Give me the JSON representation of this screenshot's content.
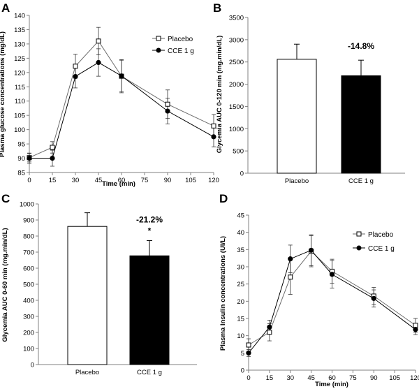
{
  "chart_data": [
    {
      "panel": "A",
      "type": "line",
      "xlabel": "Time (min)",
      "ylabel": "Plasma glucose concentrations (mg/dL)",
      "x": [
        0,
        15,
        30,
        45,
        60,
        90,
        120
      ],
      "xticks": [
        "0",
        "15",
        "30",
        "45",
        "60",
        "75",
        "90",
        "105",
        "120"
      ],
      "xlim": [
        0,
        120
      ],
      "ylim": [
        85,
        140
      ],
      "yticks": [
        "85",
        "90",
        "95",
        "100",
        "105",
        "110",
        "115",
        "120",
        "125",
        "130",
        "135",
        "140"
      ],
      "legend_position": "top-right",
      "series": [
        {
          "name": "Placebo",
          "marker": "open-square",
          "values": [
            90.2,
            93.8,
            122.2,
            131.0,
            118.7,
            108.9,
            101.3
          ],
          "errors": [
            1.5,
            2.0,
            4.2,
            4.8,
            5.8,
            5.0,
            4.0
          ]
        },
        {
          "name": "CCE 1 g",
          "marker": "filled-circle",
          "values": [
            90.0,
            90.0,
            118.6,
            123.5,
            118.8,
            106.5,
            97.5
          ],
          "errors": [
            1.8,
            2.8,
            4.0,
            4.8,
            5.5,
            4.5,
            3.5
          ]
        }
      ]
    },
    {
      "panel": "B",
      "type": "bar",
      "ylabel": "Glycemia AUC 0-120 min (mg.min/dL)",
      "categories": [
        "Placebo",
        "CCE 1 g"
      ],
      "values": [
        2560,
        2190
      ],
      "errors": [
        340,
        350
      ],
      "colors": [
        "#ffffff",
        "#000000"
      ],
      "ylim": [
        0,
        3500
      ],
      "yticks": [
        "0",
        "500",
        "1000",
        "1500",
        "2000",
        "2500",
        "3000",
        "3500"
      ],
      "annotation": "-14.8%"
    },
    {
      "panel": "C",
      "type": "bar",
      "ylabel": "Glycemia AUC 0-60 min (mg.min/dL)",
      "categories": [
        "Placebo",
        "CCE 1 g"
      ],
      "values": [
        860,
        677
      ],
      "errors": [
        85,
        95
      ],
      "colors": [
        "#ffffff",
        "#000000"
      ],
      "ylim": [
        0,
        1000
      ],
      "yticks": [
        "0",
        "100",
        "200",
        "300",
        "400",
        "500",
        "600",
        "700",
        "800",
        "900",
        "1000"
      ],
      "annotation": "-21.2%",
      "significance": "*"
    },
    {
      "panel": "D",
      "type": "line",
      "xlabel": "Time (min)",
      "ylabel": "Plasma Insulin concentrations (UI/L)",
      "x": [
        0,
        15,
        30,
        45,
        60,
        90,
        120
      ],
      "xticks": [
        "0",
        "15",
        "30",
        "45",
        "60",
        "75",
        "90",
        "105",
        "120"
      ],
      "xlim": [
        0,
        120
      ],
      "ylim": [
        0,
        45
      ],
      "yticks": [
        "0",
        "5",
        "10",
        "15",
        "20",
        "25",
        "30",
        "35",
        "40",
        "45"
      ],
      "legend_position": "top-right",
      "series": [
        {
          "name": "Placebo",
          "marker": "open-square",
          "values": [
            7.3,
            11.0,
            27.0,
            34.5,
            28.7,
            21.5,
            13.0
          ],
          "errors": [
            1.8,
            2.5,
            5.0,
            4.5,
            3.5,
            2.5,
            2.0
          ]
        },
        {
          "name": "CCE 1 g",
          "marker": "filled-circle",
          "values": [
            5.0,
            12.5,
            32.3,
            34.8,
            27.8,
            20.8,
            11.8
          ],
          "errors": [
            1.0,
            2.0,
            4.0,
            4.5,
            4.0,
            2.5,
            1.5
          ]
        }
      ]
    }
  ]
}
